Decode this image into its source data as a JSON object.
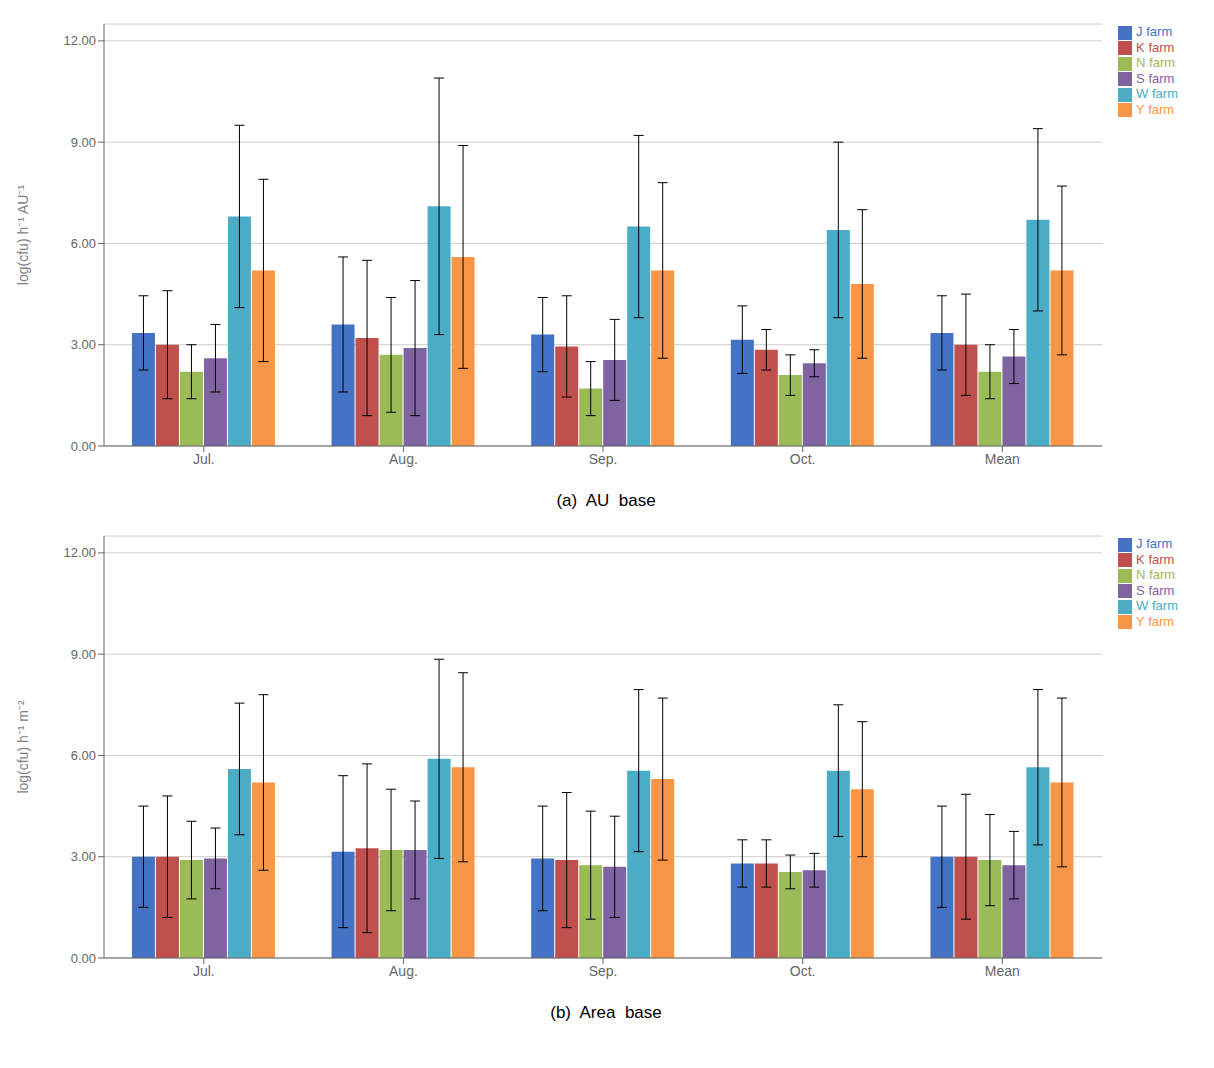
{
  "chart_data": [
    {
      "type": "bar",
      "title": "(a)  AU  base",
      "ylabel": "log(cfu) h⁻¹ AU⁻¹",
      "categories": [
        "Jul.",
        "Aug.",
        "Sep.",
        "Oct.",
        "Mean"
      ],
      "series": [
        {
          "name": "J farm",
          "color": "#4472C4",
          "values": [
            3.35,
            3.6,
            3.3,
            3.15,
            3.35
          ],
          "errors": [
            1.1,
            2.0,
            1.1,
            1.0,
            1.1
          ]
        },
        {
          "name": "K farm",
          "color": "#C0504D",
          "values": [
            3.0,
            3.2,
            2.95,
            2.85,
            3.0
          ],
          "errors": [
            1.6,
            2.3,
            1.5,
            0.6,
            1.5
          ]
        },
        {
          "name": "N farm",
          "color": "#9BBB59",
          "values": [
            2.2,
            2.7,
            1.7,
            2.1,
            2.2
          ],
          "errors": [
            0.8,
            1.7,
            0.8,
            0.6,
            0.8
          ]
        },
        {
          "name": "S farm",
          "color": "#8064A2",
          "values": [
            2.6,
            2.9,
            2.55,
            2.45,
            2.65
          ],
          "errors": [
            1.0,
            2.0,
            1.2,
            0.4,
            0.8
          ]
        },
        {
          "name": "W farm",
          "color": "#4BACC6",
          "values": [
            6.8,
            7.1,
            6.5,
            6.4,
            6.7
          ],
          "errors": [
            2.7,
            3.8,
            2.7,
            2.6,
            2.7
          ]
        },
        {
          "name": "Y farm",
          "color": "#F79646",
          "values": [
            5.2,
            5.6,
            5.2,
            4.8,
            5.2
          ],
          "errors": [
            2.7,
            3.3,
            2.6,
            2.2,
            2.5
          ]
        }
      ],
      "ylim": [
        0,
        12.5
      ],
      "yticks": [
        {
          "value": 0,
          "label": "0.00"
        },
        {
          "value": 3,
          "label": "3.00"
        },
        {
          "value": 6,
          "label": "6.00"
        },
        {
          "value": 9,
          "label": "9.00"
        },
        {
          "value": 12,
          "label": "12.00"
        }
      ],
      "grid": true,
      "legend": "upper right"
    },
    {
      "type": "bar",
      "title": "(b)  Area  base",
      "ylabel": "log(cfu) h⁻¹ m⁻²",
      "categories": [
        "Jul.",
        "Aug.",
        "Sep.",
        "Oct.",
        "Mean"
      ],
      "series": [
        {
          "name": "J farm",
          "color": "#4472C4",
          "values": [
            3.0,
            3.15,
            2.95,
            2.8,
            3.0
          ],
          "errors": [
            1.5,
            2.25,
            1.55,
            0.7,
            1.5
          ]
        },
        {
          "name": "K farm",
          "color": "#C0504D",
          "values": [
            3.0,
            3.25,
            2.9,
            2.8,
            3.0
          ],
          "errors": [
            1.8,
            2.5,
            2.0,
            0.7,
            1.85
          ]
        },
        {
          "name": "N farm",
          "color": "#9BBB59",
          "values": [
            2.9,
            3.2,
            2.75,
            2.55,
            2.9
          ],
          "errors": [
            1.15,
            1.8,
            1.6,
            0.5,
            1.35
          ]
        },
        {
          "name": "S farm",
          "color": "#8064A2",
          "values": [
            2.95,
            3.2,
            2.7,
            2.6,
            2.75
          ],
          "errors": [
            0.9,
            1.45,
            1.5,
            0.5,
            1.0
          ]
        },
        {
          "name": "W farm",
          "color": "#4BACC6",
          "values": [
            5.6,
            5.9,
            5.55,
            5.55,
            5.65
          ],
          "errors": [
            1.95,
            2.95,
            2.4,
            1.95,
            2.3
          ]
        },
        {
          "name": "Y farm",
          "color": "#F79646",
          "values": [
            5.2,
            5.65,
            5.3,
            5.0,
            5.2
          ],
          "errors": [
            2.6,
            2.8,
            2.4,
            2.0,
            2.5
          ]
        }
      ],
      "ylim": [
        0,
        12.5
      ],
      "yticks": [
        {
          "value": 0,
          "label": "0.00"
        },
        {
          "value": 3,
          "label": "3.00"
        },
        {
          "value": 6,
          "label": "6.00"
        },
        {
          "value": 9,
          "label": "9.00"
        },
        {
          "value": 12,
          "label": "12.00"
        }
      ],
      "grid": true,
      "legend": "upper right"
    }
  ]
}
